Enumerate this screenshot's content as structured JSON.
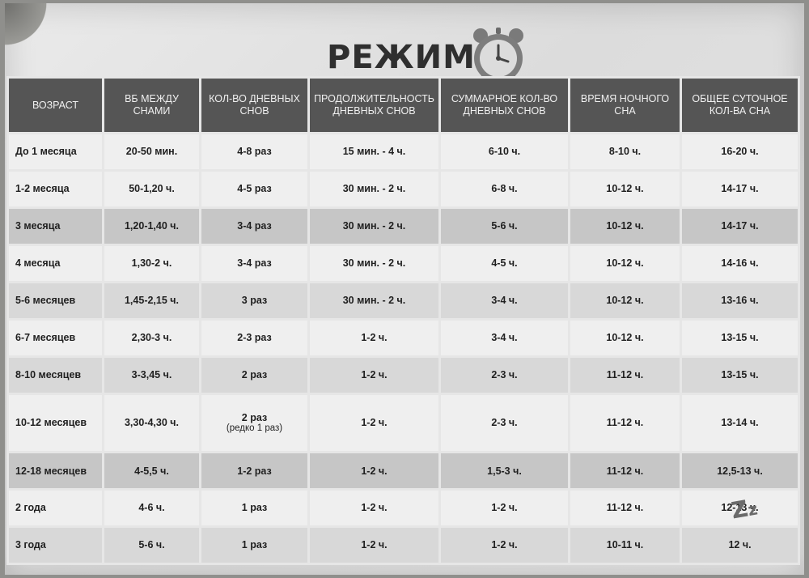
{
  "title": "РЕЖИМ",
  "headers": [
    "ВОЗРАСТ",
    "ВБ МЕЖДУ СНАМИ",
    "КОЛ-ВО ДНЕВНЫХ СНОВ",
    "ПРОДОЛЖИТЕЛЬНОСТЬ ДНЕВНЫХ СНОВ",
    "СУММАРНОЕ КОЛ-ВО ДНЕВНЫХ СНОВ",
    "ВРЕМЯ НОЧНОГО СНА",
    "ОБЩЕЕ СУТОЧНОЕ КОЛ-ВА СНА"
  ],
  "rows": [
    {
      "age": "До 1 месяца",
      "wake": "20-50 мин.",
      "naps": "4-8 раз",
      "nap_note": "",
      "nap_len": "15 мин. - 4 ч.",
      "total_day": "6-10 ч.",
      "night": "8-10 ч.",
      "total": "16-20 ч."
    },
    {
      "age": "1-2 месяца",
      "wake": "50-1,20 ч.",
      "naps": "4-5 раз",
      "nap_note": "",
      "nap_len": "30 мин. - 2 ч.",
      "total_day": "6-8 ч.",
      "night": "10-12 ч.",
      "total": "14-17 ч."
    },
    {
      "age": "3 месяца",
      "wake": "1,20-1,40 ч.",
      "naps": "3-4 раз",
      "nap_note": "",
      "nap_len": "30 мин. - 2 ч.",
      "total_day": "5-6 ч.",
      "night": "10-12 ч.",
      "total": "14-17 ч."
    },
    {
      "age": "4 месяца",
      "wake": "1,30-2 ч.",
      "naps": "3-4 раз",
      "nap_note": "",
      "nap_len": "30 мин. - 2 ч.",
      "total_day": "4-5 ч.",
      "night": "10-12 ч.",
      "total": "14-16 ч."
    },
    {
      "age": "5-6 месяцев",
      "wake": "1,45-2,15 ч.",
      "naps": "3 раз",
      "nap_note": "",
      "nap_len": "30 мин. - 2 ч.",
      "total_day": "3-4 ч.",
      "night": "10-12 ч.",
      "total": "13-16 ч."
    },
    {
      "age": "6-7 месяцев",
      "wake": "2,30-3 ч.",
      "naps": "2-3 раз",
      "nap_note": "",
      "nap_len": "1-2 ч.",
      "total_day": "3-4 ч.",
      "night": "10-12 ч.",
      "total": "13-15 ч."
    },
    {
      "age": "8-10 месяцев",
      "wake": "3-3,45 ч.",
      "naps": "2 раз",
      "nap_note": "",
      "nap_len": "1-2 ч.",
      "total_day": "2-3 ч.",
      "night": "11-12 ч.",
      "total": "13-15 ч."
    },
    {
      "age": "10-12 месяцев",
      "wake": "3,30-4,30 ч.",
      "naps": "2 раз",
      "nap_note": "(редко 1 раз)",
      "nap_len": "1-2 ч.",
      "total_day": "2-3 ч.",
      "night": "11-12 ч.",
      "total": "13-14 ч."
    },
    {
      "age": "12-18 месяцев",
      "wake": "4-5,5 ч.",
      "naps": "1-2 раз",
      "nap_note": "",
      "nap_len": "1-2 ч.",
      "total_day": "1,5-3 ч.",
      "night": "11-12 ч.",
      "total": "12,5-13 ч."
    },
    {
      "age": "2 года",
      "wake": "4-6 ч.",
      "naps": "1 раз",
      "nap_note": "",
      "nap_len": "1-2 ч.",
      "total_day": "1-2 ч.",
      "night": "11-12 ч.",
      "total": "12-13 ч."
    },
    {
      "age": "3 года",
      "wake": "5-6 ч.",
      "naps": "1 раз",
      "nap_note": "",
      "nap_len": "1-2 ч.",
      "total_day": "1-2 ч.",
      "night": "10-11 ч.",
      "total": "12 ч."
    }
  ],
  "icons": {
    "clock": "alarm-clock-icon",
    "sleep": "zzz-icon"
  },
  "colors": {
    "header_bg": "#555555",
    "header_text": "#f0f0f0",
    "title": "#2f2f2f"
  }
}
